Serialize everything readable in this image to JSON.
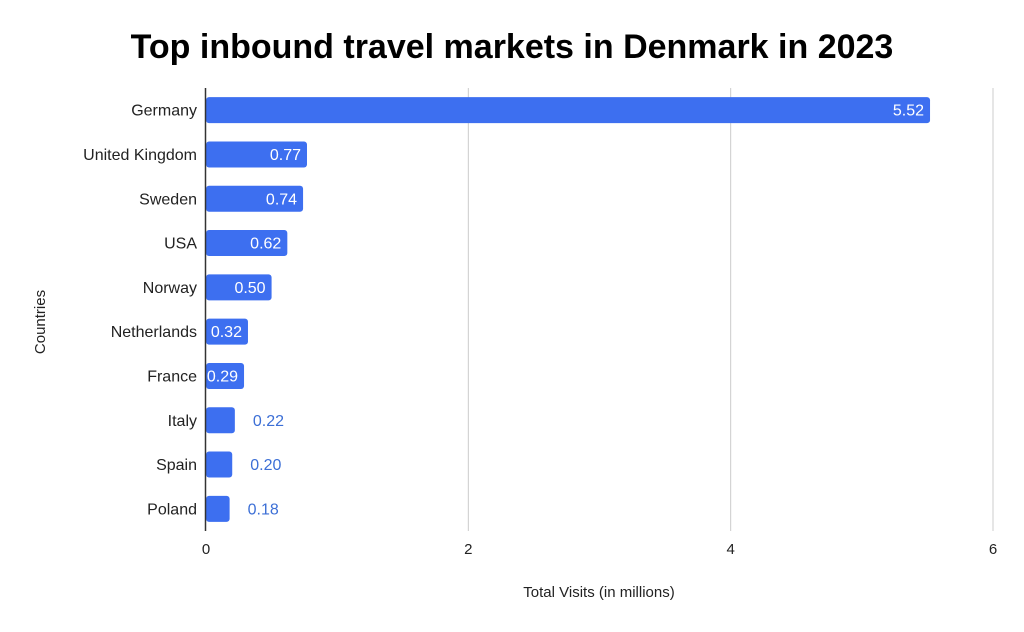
{
  "chart_data": {
    "type": "bar",
    "orientation": "horizontal",
    "title": "Top inbound travel markets in Denmark in 2023",
    "xlabel": "Total Visits (in millions)",
    "ylabel": "Countries",
    "categories": [
      "Germany",
      "United Kingdom",
      "Sweden",
      "USA",
      "Norway",
      "Netherlands",
      "France",
      "Italy",
      "Spain",
      "Poland"
    ],
    "values": [
      5.52,
      0.77,
      0.74,
      0.62,
      0.5,
      0.32,
      0.29,
      0.22,
      0.2,
      0.18
    ],
    "value_labels": [
      "5.52",
      "0.77",
      "0.74",
      "0.62",
      "0.50",
      "0.32",
      "0.29",
      "0.22",
      "0.20",
      "0.18"
    ],
    "xlim": [
      0,
      6
    ],
    "xticks": [
      "0",
      "2",
      "4",
      "6"
    ],
    "grid": true,
    "bar_color": "#3d6ff0",
    "outside_label_color": "#3c6fd6"
  }
}
